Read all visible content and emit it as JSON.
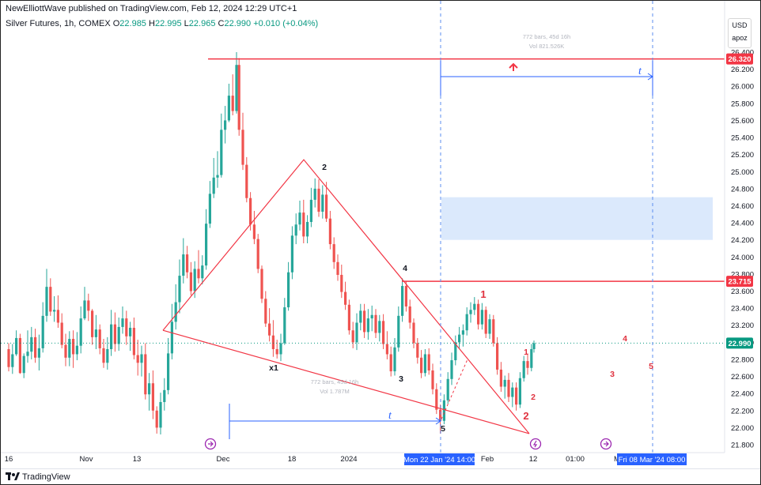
{
  "publisher": "NewElliottWave published on TradingView.com, Feb 12, 2024 12:29 UTC+1",
  "legend": {
    "symbol": "Silver Futures, 1h, COMEX",
    "o_label": "O",
    "o": "22.985",
    "h_label": "H",
    "h": "22.995",
    "l_label": "L",
    "l": "22.965",
    "c_label": "C",
    "c": "22.990",
    "change": "+0.010 (+0.04%)"
  },
  "currency": "USD",
  "currency_sub": "apoz",
  "footer_logo": "TradingView",
  "colors": {
    "up": "#26a69a",
    "down": "#ef5350",
    "wedge": "#f23645",
    "measure": "#2962ff",
    "box": "#cfe2fb",
    "last": "#089981"
  },
  "chart_data": {
    "type": "candlestick",
    "y_axis_ticks": [
      "26.400",
      "26.200",
      "26.000",
      "25.800",
      "25.600",
      "25.400",
      "25.200",
      "25.000",
      "24.800",
      "24.600",
      "24.400",
      "24.200",
      "24.000",
      "23.800",
      "23.600",
      "23.400",
      "23.200",
      "23.000",
      "22.800",
      "22.600",
      "22.400",
      "22.200",
      "22.000",
      "21.800"
    ],
    "x_axis_ticks": [
      "16",
      "Nov",
      "13",
      "Dec",
      "18",
      "2024",
      "Feb",
      "12",
      "01:00",
      "M"
    ],
    "ylim": [
      21.75,
      26.55
    ],
    "price_tags": [
      {
        "label": "26.320",
        "value": 26.32,
        "kind": "resistance"
      },
      {
        "label": "23.715",
        "value": 23.715,
        "kind": "resistance"
      },
      {
        "label": "22.990",
        "value": 22.99,
        "kind": "last"
      }
    ],
    "date_tags": [
      "Mon 22 Jan '24  14:00",
      "Fri 08 Mar '24  08:00"
    ],
    "wave_labels": [
      {
        "text": "2",
        "color": "black",
        "x": 24,
        "y": 25.05
      },
      {
        "text": "4",
        "color": "black",
        "x": 31.5,
        "y": 23.8
      },
      {
        "text": "x1",
        "color": "black",
        "x": 18.5,
        "y": 22.68
      },
      {
        "text": "3",
        "color": "black",
        "x": 31.2,
        "y": 22.55
      },
      {
        "text": "5",
        "color": "black",
        "x": 34.6,
        "y": 21.92
      },
      {
        "text": "1",
        "color": "red",
        "x": 37.6,
        "y": 23.56
      },
      {
        "text": "1",
        "color": "red",
        "x": 41.2,
        "y": 22.9
      },
      {
        "text": "2",
        "color": "red",
        "x": 41.6,
        "y": 22.42
      },
      {
        "text": "2",
        "color": "red",
        "x": 41.1,
        "y": 22.11
      },
      {
        "text": "4",
        "color": "red",
        "x": 49.3,
        "y": 22.98
      },
      {
        "text": "3",
        "color": "red",
        "x": 48.2,
        "y": 22.66
      },
      {
        "text": "5",
        "color": "red",
        "x": 51.3,
        "y": 22.75
      }
    ],
    "measure_top": {
      "text": "772 bars, 45d 16h",
      "vol": "Vol 821.526K",
      "letter": "t"
    },
    "measure_bottom": {
      "text": "772 bars, 45d 16h",
      "vol": "Vol 1.787M",
      "letter": "t"
    },
    "candles": [
      [
        0,
        22.92,
        22.99,
        22.66,
        22.71
      ],
      [
        0.3,
        22.71,
        22.98,
        22.63,
        22.86
      ],
      [
        0.6,
        22.86,
        23.14,
        22.84,
        23.05
      ],
      [
        0.9,
        23.05,
        23.1,
        22.63,
        22.64
      ],
      [
        1.2,
        22.64,
        22.87,
        22.58,
        22.84
      ],
      [
        1.5,
        22.84,
        23.14,
        22.76,
        22.89
      ],
      [
        1.8,
        22.89,
        23.18,
        22.8,
        23.06
      ],
      [
        2.1,
        23.06,
        23.16,
        22.76,
        22.82
      ],
      [
        2.4,
        22.82,
        23.09,
        22.67,
        22.93
      ],
      [
        2.7,
        22.93,
        23.47,
        22.88,
        23.31
      ],
      [
        3.0,
        23.31,
        23.86,
        23.24,
        23.65
      ],
      [
        3.3,
        23.65,
        23.75,
        23.31,
        23.36
      ],
      [
        3.6,
        23.36,
        23.54,
        23.24,
        23.38
      ],
      [
        3.9,
        23.38,
        23.55,
        23.17,
        23.23
      ],
      [
        4.2,
        23.23,
        23.34,
        22.93,
        22.97
      ],
      [
        4.5,
        22.97,
        23.1,
        22.72,
        22.82
      ],
      [
        4.8,
        22.82,
        23.13,
        22.72,
        23.04
      ],
      [
        5.1,
        23.04,
        23.14,
        22.7,
        22.86
      ],
      [
        5.4,
        22.86,
        23.12,
        22.79,
        22.96
      ],
      [
        5.7,
        22.96,
        23.42,
        22.87,
        23.28
      ],
      [
        6.0,
        23.28,
        23.65,
        23.26,
        23.49
      ],
      [
        6.3,
        23.49,
        23.57,
        23.25,
        23.37
      ],
      [
        6.6,
        23.37,
        23.39,
        22.97,
        23.06
      ],
      [
        6.9,
        23.06,
        23.32,
        22.92,
        23.15
      ],
      [
        7.2,
        23.15,
        23.21,
        22.86,
        22.93
      ],
      [
        7.5,
        22.93,
        23.04,
        22.7,
        22.76
      ],
      [
        7.8,
        22.76,
        23.06,
        22.68,
        22.92
      ],
      [
        8.1,
        22.92,
        23.38,
        22.84,
        23.21
      ],
      [
        8.4,
        23.21,
        23.35,
        22.89,
        22.98
      ],
      [
        8.7,
        22.98,
        23.29,
        22.9,
        23.18
      ],
      [
        9.0,
        23.18,
        23.42,
        23.1,
        23.28
      ],
      [
        9.3,
        23.28,
        23.37,
        22.97,
        23.07
      ],
      [
        9.6,
        23.07,
        23.24,
        22.9,
        23.17
      ],
      [
        9.9,
        23.17,
        23.29,
        22.8,
        22.85
      ],
      [
        10.2,
        22.85,
        23.03,
        22.61,
        22.76
      ],
      [
        10.5,
        22.76,
        22.96,
        22.6,
        22.86
      ],
      [
        10.8,
        22.86,
        22.99,
        22.33,
        22.39
      ],
      [
        11.1,
        22.39,
        22.64,
        22.2,
        22.52
      ],
      [
        11.4,
        22.52,
        22.67,
        22.1,
        22.2
      ],
      [
        11.7,
        22.2,
        22.25,
        21.93,
        22.0
      ],
      [
        12.0,
        22.0,
        22.41,
        21.92,
        22.3
      ],
      [
        12.3,
        22.3,
        22.58,
        22.2,
        22.44
      ],
      [
        12.6,
        22.44,
        23.05,
        22.39,
        22.87
      ],
      [
        12.9,
        22.87,
        23.45,
        22.8,
        23.24
      ],
      [
        13.2,
        23.24,
        23.68,
        23.15,
        23.47
      ],
      [
        13.5,
        23.47,
        23.97,
        23.34,
        23.78
      ],
      [
        13.8,
        23.78,
        24.22,
        23.69,
        24.03
      ],
      [
        14.1,
        24.03,
        24.13,
        23.75,
        23.82
      ],
      [
        14.4,
        23.82,
        23.94,
        23.55,
        23.6
      ],
      [
        14.7,
        23.6,
        23.95,
        23.52,
        23.86
      ],
      [
        15.0,
        23.86,
        24.08,
        23.69,
        23.75
      ],
      [
        15.3,
        23.75,
        24.02,
        23.68,
        23.9
      ],
      [
        15.6,
        23.9,
        24.56,
        23.85,
        24.39
      ],
      [
        15.9,
        24.39,
        24.89,
        24.34,
        24.74
      ],
      [
        16.2,
        24.74,
        25.16,
        24.69,
        24.93
      ],
      [
        16.5,
        24.93,
        25.24,
        24.81,
        24.96
      ],
      [
        16.8,
        24.96,
        25.68,
        24.93,
        25.49
      ],
      [
        17.1,
        25.49,
        25.77,
        25.33,
        25.6
      ],
      [
        17.4,
        25.6,
        26.03,
        25.58,
        25.89
      ],
      [
        17.7,
        25.89,
        26.14,
        25.66,
        25.71
      ],
      [
        18.0,
        25.71,
        26.4,
        25.68,
        26.25
      ],
      [
        18.2,
        26.25,
        26.33,
        25.42,
        25.49
      ],
      [
        18.5,
        25.49,
        25.69,
        25.02,
        25.08
      ],
      [
        18.8,
        25.08,
        25.17,
        24.64,
        24.69
      ],
      [
        19.1,
        24.69,
        24.76,
        24.31,
        24.38
      ],
      [
        19.4,
        24.38,
        24.54,
        24.15,
        24.21
      ],
      [
        19.7,
        24.21,
        24.27,
        23.81,
        23.86
      ],
      [
        20.0,
        23.86,
        23.9,
        23.46,
        23.51
      ],
      [
        20.3,
        23.51,
        23.6,
        23.18,
        23.22
      ],
      [
        20.6,
        23.22,
        23.4,
        23.01,
        23.08
      ],
      [
        20.9,
        23.08,
        23.26,
        22.83,
        22.92
      ],
      [
        21.2,
        22.92,
        23.03,
        22.81,
        22.86
      ],
      [
        21.5,
        22.86,
        23.1,
        22.78,
        22.99
      ],
      [
        21.8,
        22.99,
        23.52,
        22.97,
        23.41
      ],
      [
        22.1,
        23.41,
        23.94,
        23.37,
        23.82
      ],
      [
        22.4,
        23.82,
        24.36,
        23.74,
        24.25
      ],
      [
        22.7,
        24.25,
        24.51,
        24.15,
        24.38
      ],
      [
        23.0,
        24.38,
        24.66,
        24.31,
        24.52
      ],
      [
        23.3,
        24.52,
        24.67,
        24.16,
        24.24
      ],
      [
        23.6,
        24.24,
        24.49,
        24.16,
        24.41
      ],
      [
        23.9,
        24.41,
        24.81,
        24.35,
        24.67
      ],
      [
        24.2,
        24.67,
        24.92,
        24.58,
        24.8
      ],
      [
        24.5,
        24.8,
        24.91,
        24.47,
        24.53
      ],
      [
        24.8,
        24.53,
        24.84,
        24.45,
        24.73
      ],
      [
        25.1,
        24.73,
        24.88,
        24.41,
        24.45
      ],
      [
        25.4,
        24.45,
        24.54,
        24.09,
        24.15
      ],
      [
        25.7,
        24.15,
        24.23,
        23.86,
        23.94
      ],
      [
        26.0,
        23.94,
        24.03,
        23.72,
        23.79
      ],
      [
        26.3,
        23.79,
        23.91,
        23.52,
        23.59
      ],
      [
        26.6,
        23.59,
        23.71,
        23.38,
        23.44
      ],
      [
        26.9,
        23.44,
        23.5,
        23.09,
        23.14
      ],
      [
        27.2,
        23.14,
        23.24,
        22.93,
        23.0
      ],
      [
        27.5,
        23.0,
        23.34,
        22.91,
        23.23
      ],
      [
        27.8,
        23.23,
        23.45,
        23.14,
        23.37
      ],
      [
        28.1,
        23.37,
        23.45,
        23.05,
        23.12
      ],
      [
        28.4,
        23.12,
        23.39,
        23.03,
        23.28
      ],
      [
        28.7,
        23.28,
        23.43,
        23.13,
        23.32
      ],
      [
        29.0,
        23.32,
        23.39,
        23.05,
        23.11
      ],
      [
        29.3,
        23.11,
        23.32,
        23.01,
        23.25
      ],
      [
        29.6,
        23.25,
        23.33,
        22.92,
        22.98
      ],
      [
        29.9,
        22.98,
        23.13,
        22.8,
        22.86
      ],
      [
        30.2,
        22.86,
        22.95,
        22.6,
        22.66
      ],
      [
        30.5,
        22.66,
        23.05,
        22.61,
        22.94
      ],
      [
        30.8,
        22.94,
        23.42,
        22.89,
        23.31
      ],
      [
        31.1,
        23.31,
        23.75,
        23.24,
        23.66
      ],
      [
        31.4,
        23.66,
        23.72,
        23.36,
        23.42
      ],
      [
        31.7,
        23.42,
        23.5,
        23.16,
        23.23
      ],
      [
        32.0,
        23.23,
        23.28,
        22.93,
        22.99
      ],
      [
        32.3,
        22.99,
        23.05,
        22.75,
        22.82
      ],
      [
        32.6,
        22.82,
        22.91,
        22.58,
        22.64
      ],
      [
        32.9,
        22.64,
        22.92,
        22.6,
        22.86
      ],
      [
        33.2,
        22.86,
        22.93,
        22.62,
        22.67
      ],
      [
        33.5,
        22.67,
        22.75,
        22.39,
        22.45
      ],
      [
        33.8,
        22.45,
        22.52,
        22.16,
        22.21
      ],
      [
        34.1,
        22.21,
        22.27,
        21.93,
        22.08
      ],
      [
        34.4,
        22.08,
        22.39,
        22.04,
        22.32
      ],
      [
        34.7,
        22.32,
        22.65,
        22.28,
        22.57
      ],
      [
        35.0,
        22.57,
        22.88,
        22.5,
        22.79
      ],
      [
        35.3,
        22.79,
        23.08,
        22.73,
        23.0
      ],
      [
        35.6,
        23.0,
        23.18,
        22.92,
        23.09
      ],
      [
        35.9,
        23.09,
        23.21,
        22.95,
        23.14
      ],
      [
        36.2,
        23.14,
        23.41,
        23.08,
        23.33
      ],
      [
        36.5,
        23.33,
        23.47,
        23.23,
        23.38
      ],
      [
        36.8,
        23.38,
        23.53,
        23.32,
        23.45
      ],
      [
        37.1,
        23.45,
        23.5,
        23.15,
        23.21
      ],
      [
        37.4,
        23.21,
        23.46,
        23.15,
        23.38
      ],
      [
        37.7,
        23.38,
        23.42,
        23.05,
        23.1
      ],
      [
        38.0,
        23.1,
        23.33,
        23.04,
        23.27
      ],
      [
        38.3,
        23.27,
        23.32,
        22.95,
        22.99
      ],
      [
        38.6,
        22.99,
        23.06,
        22.62,
        22.68
      ],
      [
        38.9,
        22.68,
        22.77,
        22.42,
        22.48
      ],
      [
        39.2,
        22.48,
        22.61,
        22.34,
        22.56
      ],
      [
        39.5,
        22.56,
        22.64,
        22.3,
        22.36
      ],
      [
        39.8,
        22.36,
        22.53,
        22.24,
        22.47
      ],
      [
        40.1,
        22.47,
        22.53,
        22.2,
        22.27
      ],
      [
        40.4,
        22.27,
        22.65,
        22.23,
        22.58
      ],
      [
        40.7,
        22.58,
        22.84,
        22.54,
        22.78
      ],
      [
        41.0,
        22.78,
        22.87,
        22.62,
        22.7
      ],
      [
        41.3,
        22.7,
        22.98,
        22.66,
        22.92
      ],
      [
        41.5,
        22.92,
        23.02,
        22.88,
        22.99
      ]
    ]
  }
}
